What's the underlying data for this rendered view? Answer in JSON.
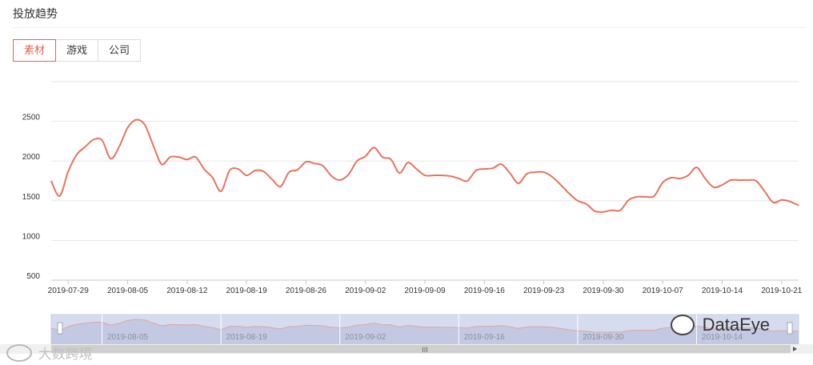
{
  "header": {
    "title": "投放趋势"
  },
  "tabs": [
    {
      "label": "素材",
      "active": true
    },
    {
      "label": "游戏",
      "active": false
    },
    {
      "label": "公司",
      "active": false
    }
  ],
  "colors": {
    "line": "#e8735f",
    "accent": "#e8604c",
    "zoom_fill": "#d6dcef",
    "grid": "#e6e6e6"
  },
  "watermarks": {
    "left": "大数跨境",
    "right": "DataEye"
  },
  "chart_data": {
    "type": "line",
    "x_start": "2019-07-27",
    "x_end": "2019-10-23",
    "xticks": [
      "2019-07-29",
      "2019-08-05",
      "2019-08-12",
      "2019-08-19",
      "2019-08-26",
      "2019-09-02",
      "2019-09-09",
      "2019-09-16",
      "2019-09-23",
      "2019-09-30",
      "2019-10-07",
      "2019-10-14",
      "2019-10-21"
    ],
    "zoom_ticks": [
      "2019-08-05",
      "2019-08-19",
      "2019-09-02",
      "2019-09-16",
      "2019-09-30",
      "2019-10-14"
    ],
    "yticks": [
      500,
      1000,
      1500,
      2000,
      2500
    ],
    "ylim": [
      500,
      3000
    ],
    "grid": true,
    "series": [
      {
        "x": [
          "2019-07-27",
          "2019-07-28",
          "2019-07-29",
          "2019-07-30",
          "2019-07-31",
          "2019-08-01",
          "2019-08-02",
          "2019-08-03",
          "2019-08-04",
          "2019-08-05",
          "2019-08-06",
          "2019-08-07",
          "2019-08-08",
          "2019-08-09",
          "2019-08-10",
          "2019-08-11",
          "2019-08-12",
          "2019-08-13",
          "2019-08-14",
          "2019-08-15",
          "2019-08-16",
          "2019-08-17",
          "2019-08-18",
          "2019-08-19",
          "2019-08-20",
          "2019-08-21",
          "2019-08-22",
          "2019-08-23",
          "2019-08-24",
          "2019-08-25",
          "2019-08-26",
          "2019-08-27",
          "2019-08-28",
          "2019-08-29",
          "2019-08-30",
          "2019-08-31",
          "2019-09-01",
          "2019-09-02",
          "2019-09-03",
          "2019-09-04",
          "2019-09-05",
          "2019-09-06",
          "2019-09-07",
          "2019-09-08",
          "2019-09-09",
          "2019-09-10",
          "2019-09-11",
          "2019-09-12",
          "2019-09-13",
          "2019-09-14",
          "2019-09-15",
          "2019-09-16",
          "2019-09-17",
          "2019-09-18",
          "2019-09-19",
          "2019-09-20",
          "2019-09-21",
          "2019-09-22",
          "2019-09-23",
          "2019-09-24",
          "2019-09-25",
          "2019-09-26",
          "2019-09-27",
          "2019-09-28",
          "2019-09-29",
          "2019-09-30",
          "2019-10-01",
          "2019-10-02",
          "2019-10-03",
          "2019-10-04",
          "2019-10-05",
          "2019-10-06",
          "2019-10-07",
          "2019-10-08",
          "2019-10-09",
          "2019-10-10",
          "2019-10-11",
          "2019-10-12",
          "2019-10-13",
          "2019-10-14",
          "2019-10-15",
          "2019-10-16",
          "2019-10-17",
          "2019-10-18",
          "2019-10-19",
          "2019-10-20",
          "2019-10-21",
          "2019-10-22",
          "2019-10-23"
        ],
        "values": [
          1750,
          1560,
          1870,
          2080,
          2180,
          2270,
          2260,
          2030,
          2180,
          2420,
          2520,
          2460,
          2200,
          1960,
          2050,
          2050,
          2020,
          2050,
          1900,
          1790,
          1620,
          1880,
          1900,
          1820,
          1880,
          1870,
          1770,
          1680,
          1860,
          1890,
          1990,
          1970,
          1940,
          1810,
          1760,
          1830,
          2000,
          2060,
          2170,
          2050,
          2020,
          1850,
          1980,
          1900,
          1820,
          1820,
          1820,
          1810,
          1780,
          1750,
          1880,
          1900,
          1910,
          1960,
          1850,
          1720,
          1840,
          1860,
          1860,
          1800,
          1700,
          1590,
          1500,
          1460,
          1370,
          1360,
          1380,
          1380,
          1510,
          1550,
          1550,
          1560,
          1730,
          1790,
          1780,
          1820,
          1920,
          1780,
          1670,
          1700,
          1760,
          1760,
          1760,
          1750,
          1620,
          1480,
          1510,
          1490,
          1440
        ]
      }
    ]
  }
}
